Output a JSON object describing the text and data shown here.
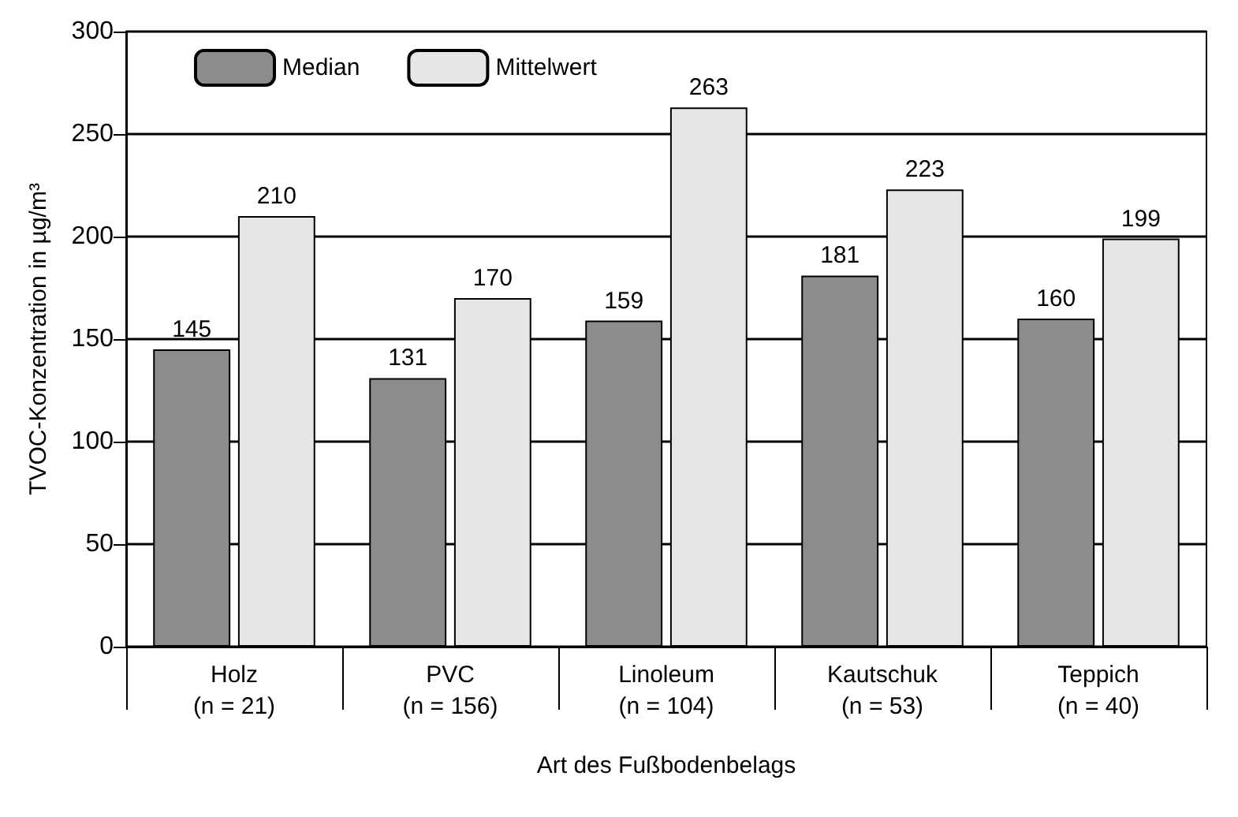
{
  "chart_data": {
    "type": "bar",
    "categories": [
      "Holz\n(n = 21)",
      "PVC\n(n = 156)",
      "Linoleum\n(n = 104)",
      "Kautschuk\n(n = 53)",
      "Teppich\n(n = 40)"
    ],
    "series": [
      {
        "name": "Median",
        "color": "#8c8c8c",
        "values": [
          145,
          131,
          159,
          181,
          160
        ]
      },
      {
        "name": "Mittelwert",
        "color": "#e6e6e6",
        "values": [
          210,
          170,
          263,
          223,
          199
        ]
      }
    ],
    "xlabel": "Art des Fußbodenbelags",
    "ylabel": "TVOC-Konzentration in µg/m³",
    "ylim": [
      0,
      300
    ],
    "yticks": [
      0,
      50,
      100,
      150,
      200,
      250,
      300
    ],
    "grid": "y",
    "legend": "top left",
    "data_labels": true
  }
}
